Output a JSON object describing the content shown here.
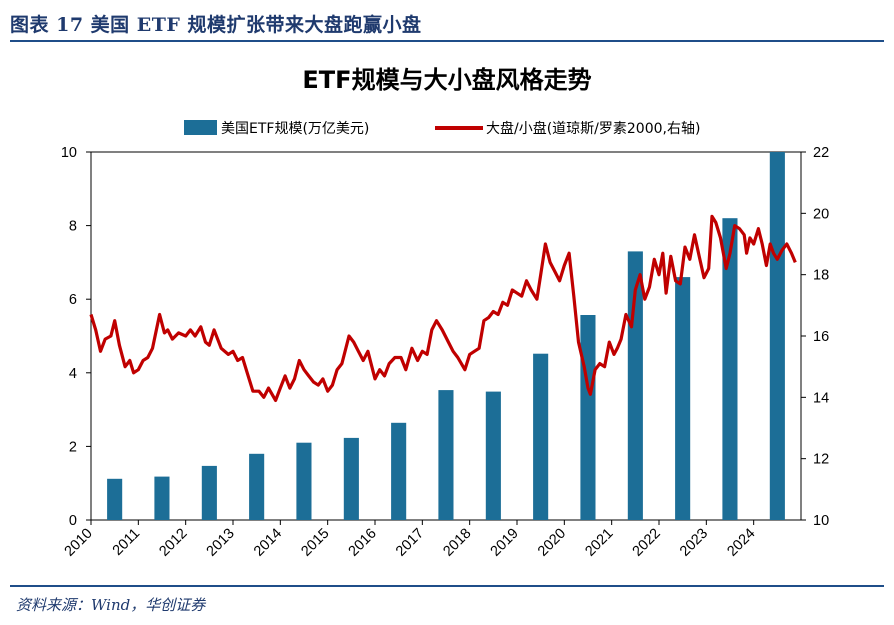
{
  "figure": {
    "caption": "图表 17   美国 ETF 规模扩张带来大盘跑赢小盘",
    "source": "资料来源：Wind，华创证券"
  },
  "colors": {
    "bar": "#1c6e97",
    "line": "#c00000",
    "header": "#1f3a6e",
    "rule": "#1f4e89"
  },
  "chart_data": {
    "type": "bar",
    "title": "ETF规模与大小盘风格走势",
    "xlabel": "",
    "ylabel": "",
    "y2label": "",
    "x_tick_labels": [
      "2010",
      "2011",
      "2012",
      "2013",
      "2014",
      "2015",
      "2016",
      "2017",
      "2018",
      "2019",
      "2020",
      "2021",
      "2022",
      "2023",
      "2024"
    ],
    "ylim": [
      0,
      10
    ],
    "y_ticks": [
      "0",
      "2",
      "4",
      "6",
      "8",
      "10"
    ],
    "y2lim": [
      10,
      22
    ],
    "y2_ticks": [
      "10",
      "12",
      "14",
      "16",
      "18",
      "20",
      "22"
    ],
    "series": [
      {
        "name": "美国ETF规模(万亿美元)",
        "type": "bar",
        "axis": "left",
        "x": [
          2010.5,
          2011.5,
          2012.5,
          2013.5,
          2014.5,
          2015.5,
          2016.5,
          2017.5,
          2018.5,
          2019.5,
          2020.5,
          2021.5,
          2022.5,
          2023.5,
          2024.5
        ],
        "values": [
          1.12,
          1.18,
          1.47,
          1.8,
          2.1,
          2.23,
          2.64,
          3.53,
          3.49,
          4.52,
          5.57,
          7.3,
          6.6,
          8.2,
          10.0
        ]
      },
      {
        "name": "大盘/小盘(道琼斯/罗素2000,右轴)",
        "type": "line",
        "axis": "right",
        "x": [
          2010.0,
          2010.1,
          2010.2,
          2010.3,
          2010.42,
          2010.5,
          2010.6,
          2010.72,
          2010.82,
          2010.9,
          2011.0,
          2011.1,
          2011.2,
          2011.3,
          2011.45,
          2011.55,
          2011.62,
          2011.72,
          2011.85,
          2012.0,
          2012.1,
          2012.2,
          2012.32,
          2012.42,
          2012.5,
          2012.6,
          2012.75,
          2012.9,
          2013.0,
          2013.1,
          2013.2,
          2013.3,
          2013.42,
          2013.55,
          2013.65,
          2013.75,
          2013.9,
          2014.0,
          2014.1,
          2014.2,
          2014.3,
          2014.4,
          2014.5,
          2014.6,
          2014.7,
          2014.8,
          2014.9,
          2015.0,
          2015.1,
          2015.2,
          2015.3,
          2015.45,
          2015.55,
          2015.65,
          2015.75,
          2015.85,
          2016.0,
          2016.1,
          2016.2,
          2016.3,
          2016.42,
          2016.55,
          2016.65,
          2016.78,
          2016.9,
          2017.0,
          2017.1,
          2017.2,
          2017.3,
          2017.42,
          2017.55,
          2017.65,
          2017.75,
          2017.9,
          2018.0,
          2018.1,
          2018.2,
          2018.3,
          2018.4,
          2018.5,
          2018.6,
          2018.7,
          2018.8,
          2018.9,
          2019.0,
          2019.1,
          2019.2,
          2019.3,
          2019.42,
          2019.5,
          2019.6,
          2019.7,
          2019.8,
          2019.9,
          2020.0,
          2020.05,
          2020.1,
          2020.2,
          2020.3,
          2020.42,
          2020.5,
          2020.55,
          2020.65,
          2020.75,
          2020.85,
          2020.95,
          2021.05,
          2021.12,
          2021.2,
          2021.3,
          2021.42,
          2021.5,
          2021.6,
          2021.7,
          2021.8,
          2021.9,
          2022.0,
          2022.08,
          2022.15,
          2022.25,
          2022.35,
          2022.45,
          2022.55,
          2022.65,
          2022.75,
          2022.85,
          2022.95,
          2023.05,
          2023.12,
          2023.2,
          2023.3,
          2023.42,
          2023.5,
          2023.6,
          2023.7,
          2023.8,
          2023.85,
          2023.92,
          2024.0,
          2024.1,
          2024.18,
          2024.27,
          2024.35,
          2024.42,
          2024.5,
          2024.6,
          2024.7,
          2024.8,
          2024.88
        ],
        "values": [
          16.7,
          16.2,
          15.5,
          15.9,
          16.0,
          16.5,
          15.7,
          15.0,
          15.2,
          14.8,
          14.9,
          15.2,
          15.3,
          15.6,
          16.7,
          16.1,
          16.2,
          15.9,
          16.1,
          16.0,
          16.2,
          16.0,
          16.3,
          15.8,
          15.7,
          16.2,
          15.6,
          15.4,
          15.5,
          15.2,
          15.3,
          14.8,
          14.2,
          14.2,
          14.0,
          14.3,
          13.9,
          14.3,
          14.7,
          14.3,
          14.6,
          15.2,
          14.9,
          14.7,
          14.5,
          14.4,
          14.6,
          14.2,
          14.4,
          14.9,
          15.1,
          16.0,
          15.8,
          15.5,
          15.2,
          15.5,
          14.6,
          14.9,
          14.7,
          15.1,
          15.3,
          15.3,
          14.9,
          15.6,
          15.2,
          15.5,
          15.4,
          16.2,
          16.5,
          16.2,
          15.8,
          15.5,
          15.3,
          14.9,
          15.4,
          15.5,
          15.6,
          16.5,
          16.6,
          16.8,
          16.7,
          17.1,
          17.0,
          17.5,
          17.4,
          17.3,
          17.8,
          17.5,
          17.2,
          18.0,
          19.0,
          18.4,
          18.1,
          17.8,
          18.3,
          18.5,
          18.7,
          17.3,
          15.8,
          15.0,
          14.3,
          14.1,
          14.9,
          15.1,
          15.0,
          15.8,
          15.4,
          15.6,
          15.9,
          16.7,
          16.3,
          17.5,
          18.0,
          17.2,
          17.6,
          18.5,
          18.0,
          18.7,
          17.4,
          18.6,
          17.8,
          17.7,
          18.9,
          18.5,
          19.3,
          18.6,
          17.9,
          18.2,
          19.9,
          19.7,
          19.2,
          18.2,
          18.7,
          19.6,
          19.5,
          19.3,
          18.7,
          19.2,
          19.0,
          19.5,
          19.0,
          18.3,
          19.0,
          18.7,
          18.5,
          18.8,
          19.0,
          18.7,
          18.4
        ]
      }
    ],
    "legend_position": "top"
  }
}
